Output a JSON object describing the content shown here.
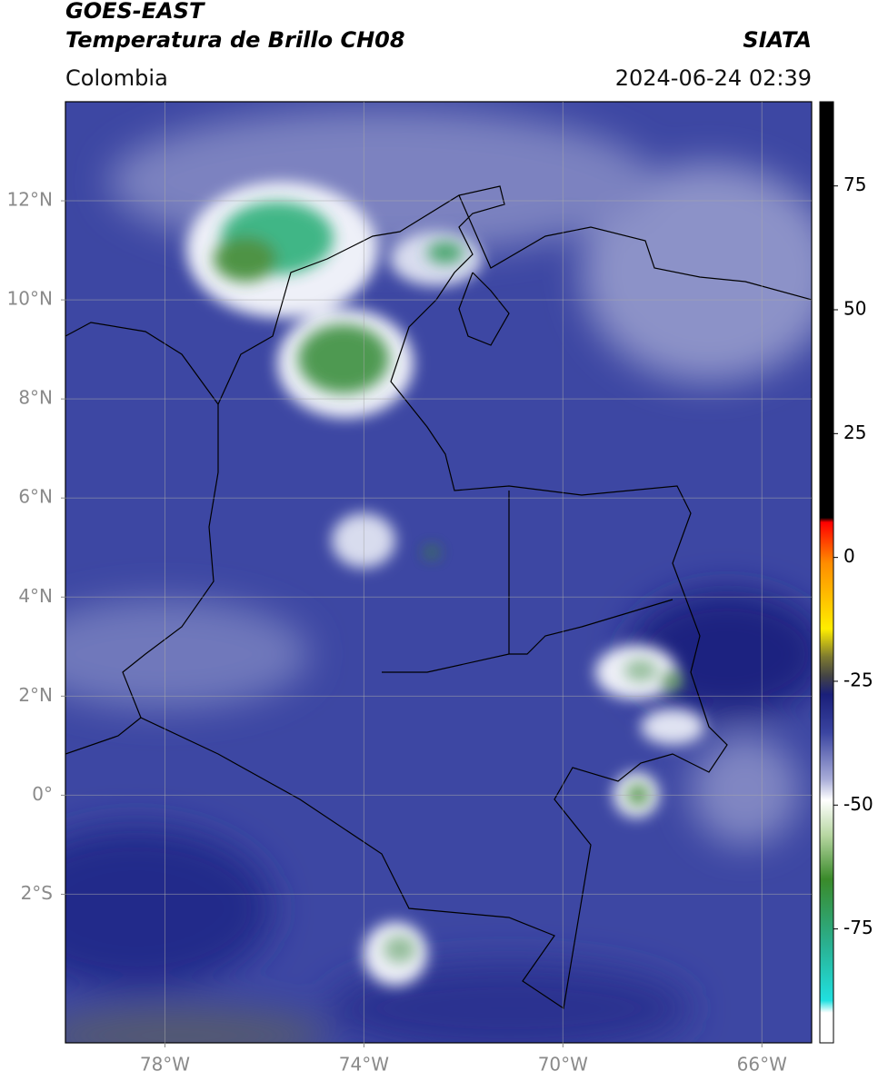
{
  "header": {
    "satellite": "GOES-EAST",
    "product": "Temperatura de Brillo CH08",
    "source": "SIATA",
    "region": "Colombia",
    "datetime": "2024-06-24 02:39"
  },
  "map": {
    "xlim": [
      -80,
      -65
    ],
    "ylim": [
      -5,
      14
    ],
    "xticks": [
      {
        "value": -78,
        "label": "78°W"
      },
      {
        "value": -74,
        "label": "74°W"
      },
      {
        "value": -70,
        "label": "70°W"
      },
      {
        "value": -66,
        "label": "66°W"
      }
    ],
    "yticks": [
      {
        "value": 12,
        "label": "12°N"
      },
      {
        "value": 10,
        "label": "10°N"
      },
      {
        "value": 8,
        "label": "8°N"
      },
      {
        "value": 6,
        "label": "6°N"
      },
      {
        "value": 4,
        "label": "4°N"
      },
      {
        "value": 2,
        "label": "2°N"
      },
      {
        "value": 0,
        "label": "0°"
      },
      {
        "value": -2,
        "label": "2°S"
      }
    ],
    "grid": true
  },
  "colorbar": {
    "lim": [
      -98,
      92
    ],
    "ticks": [
      75,
      50,
      25,
      0,
      -25,
      -50,
      -75
    ]
  }
}
